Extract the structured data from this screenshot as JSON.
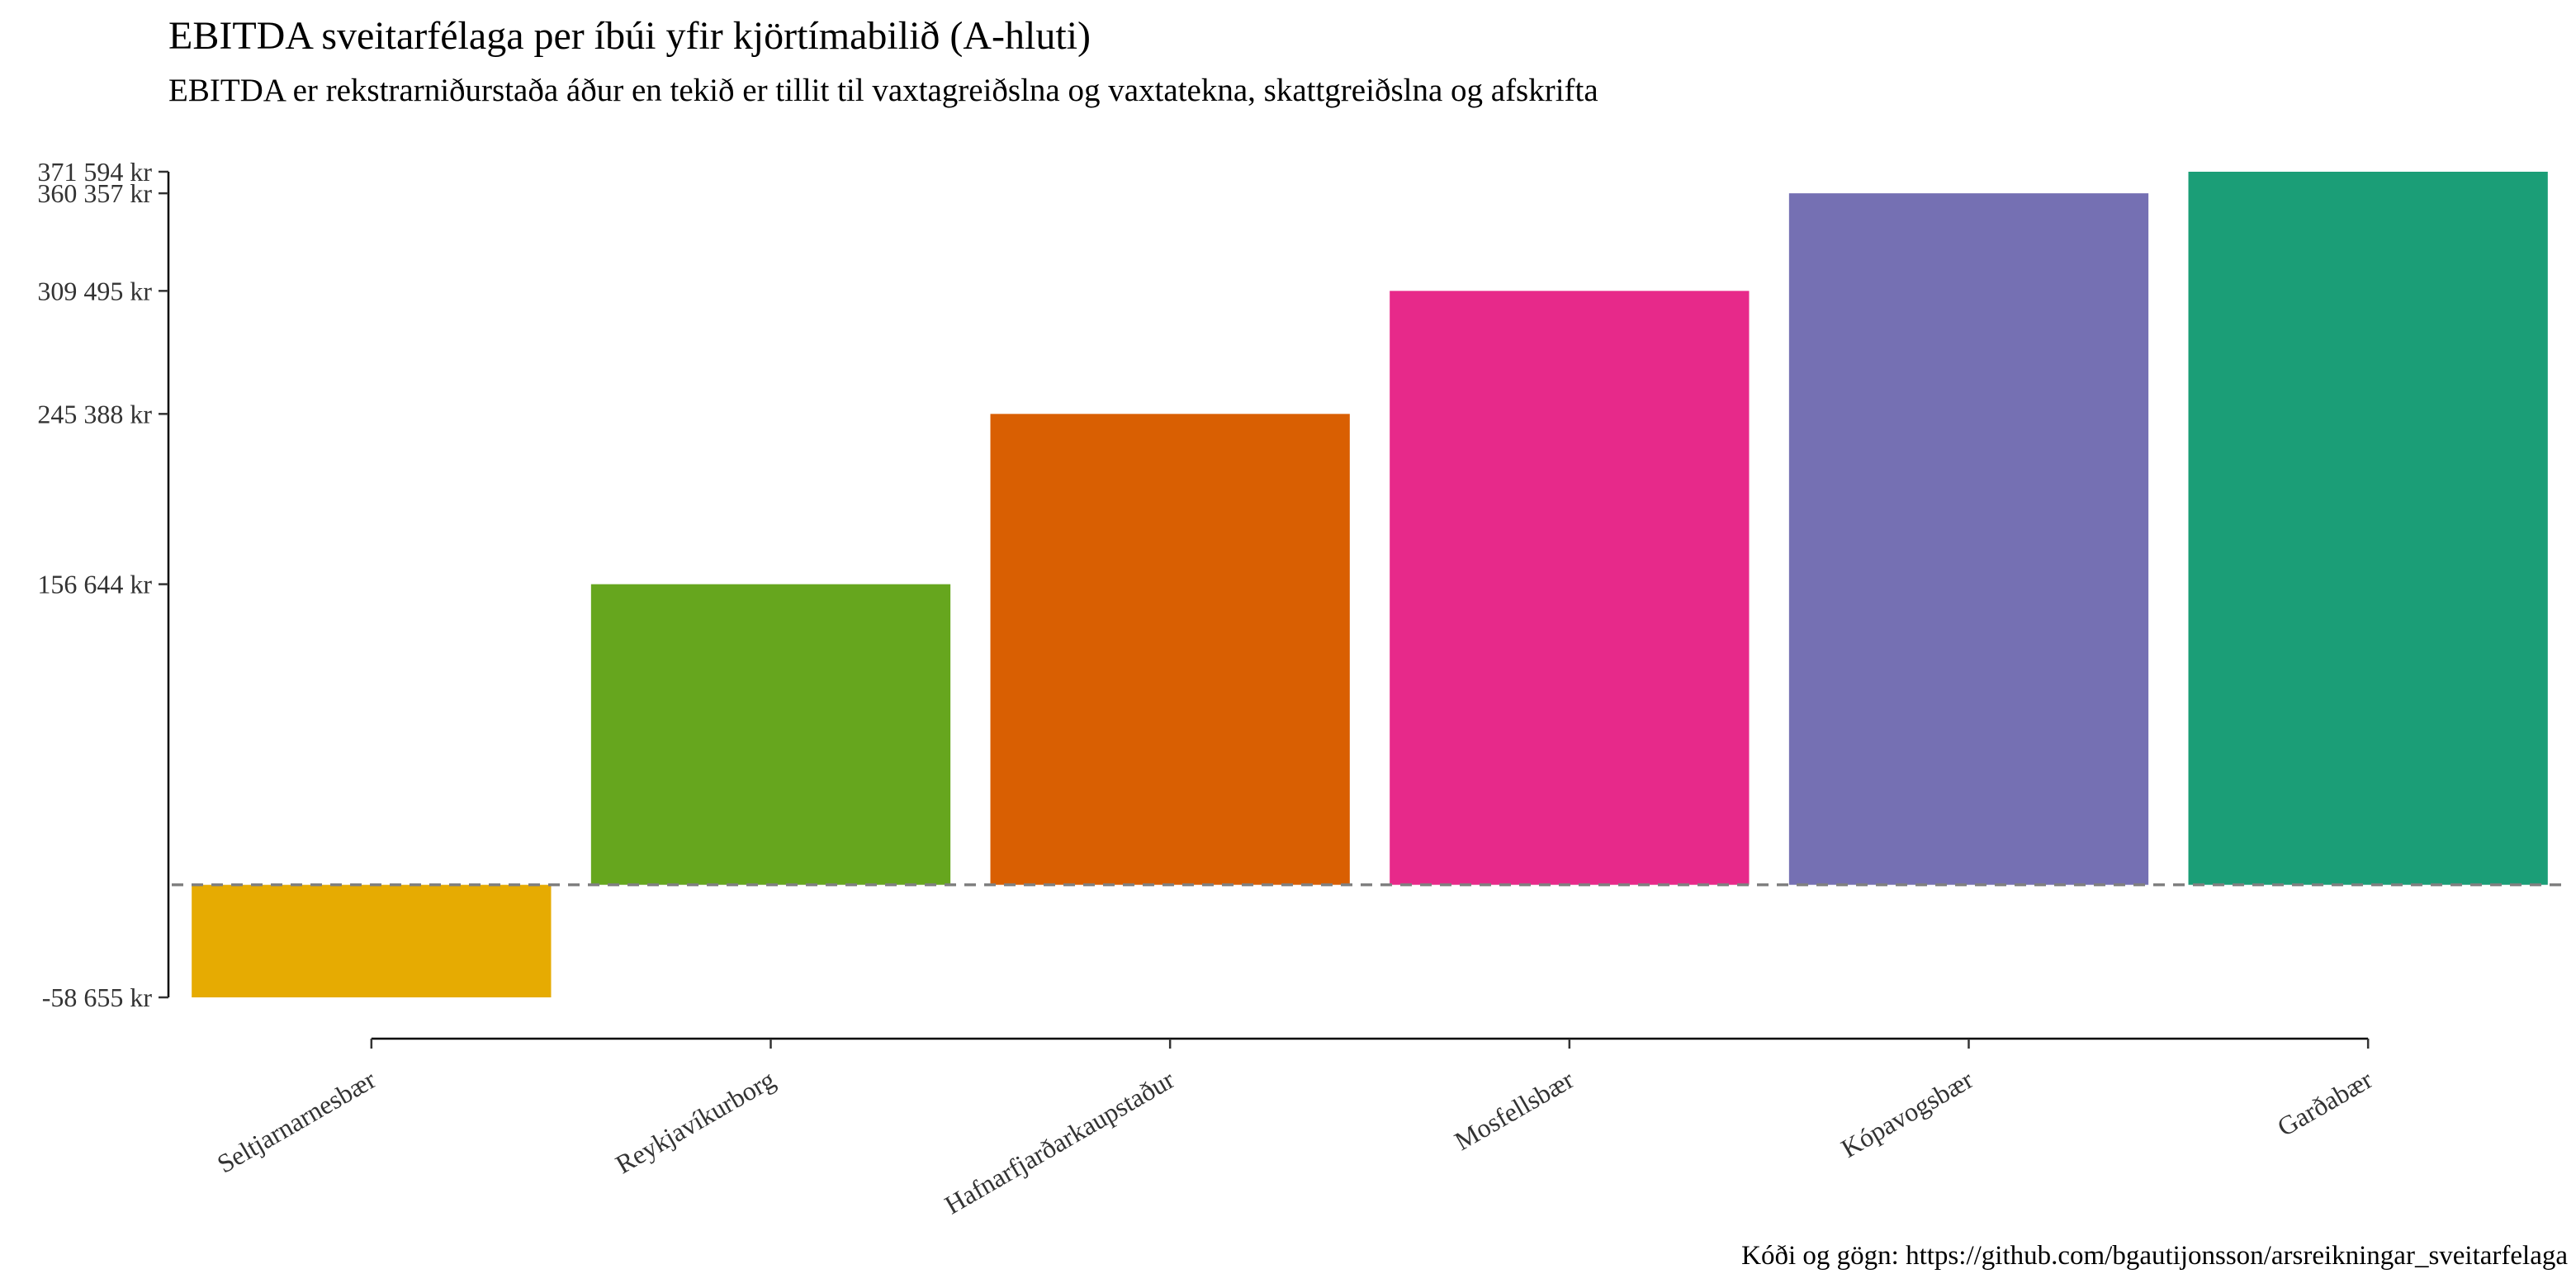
{
  "title": "EBITDA sveitarfélaga per íbúi yfir kjörtímabilið (A-hluti)",
  "subtitle": "EBITDA er rekstrarniðurstaða áður en tekið er tillit til vaxtagreiðslna og vaxtatekna, skattgreiðslna og afskrifta",
  "caption": "Kóði og gögn: https://github.com/bgautijonsson/arsreikningar_sveitarfelaga",
  "chart_data": {
    "type": "bar",
    "title": "EBITDA sveitarfélaga per íbúi yfir kjörtímabilið (A-hluti)",
    "subtitle": "EBITDA er rekstrarniðurstaða áður en tekið er tillit til vaxtagreiðslna og vaxtatekna, skattgreiðslna og afskrifta",
    "xlabel": "",
    "ylabel": "",
    "categories": [
      "Seltjarnarnesbær",
      "Reykjavíkurborg",
      "Hafnarfjarðarkaupstaður",
      "Mosfellsbær",
      "Kópavogsbær",
      "Garðabær"
    ],
    "values": [
      -58655,
      156644,
      245388,
      309495,
      360357,
      371594
    ],
    "colors": [
      "#E6AB02",
      "#66A61E",
      "#D95F02",
      "#E7298A",
      "#7570B3",
      "#1B9E77"
    ],
    "y_ticks": [
      -58655,
      156644,
      245388,
      309495,
      360357,
      371594
    ],
    "y_tick_labels": [
      "-58 655 kr",
      "156 644 kr",
      "245 388 kr",
      "309 495 kr",
      "360 357 kr",
      "371 594 kr"
    ],
    "ylim": [
      -58655,
      371594
    ],
    "reference_line": {
      "y": 0,
      "style": "dashed",
      "color": "#808080"
    },
    "grid": false,
    "legend": "none"
  }
}
